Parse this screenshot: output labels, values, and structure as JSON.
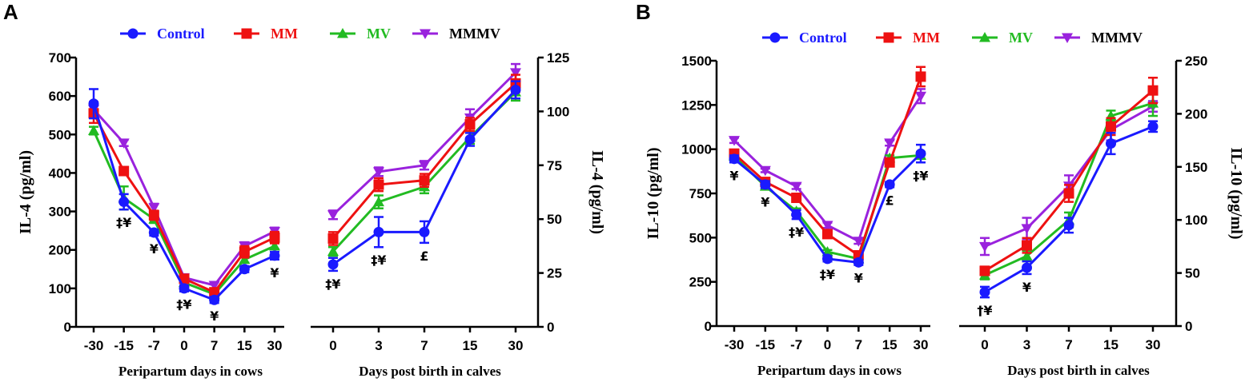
{
  "colors": {
    "Control": "#1a1aff",
    "MM": "#ee1111",
    "MV": "#22bb22",
    "MMMV": "#9922dd"
  },
  "legend": [
    "Control",
    "MM",
    "MV",
    "MMMV"
  ],
  "chart_data": [
    {
      "panel": "A",
      "type": "line",
      "title": "",
      "left": {
        "xlabel": "Peripartum days in cows",
        "ylabel": "IL-4 (pg/ml)",
        "categories": [
          "-30",
          "-15",
          "-7",
          "0",
          "7",
          "15",
          "30"
        ],
        "ylim": [
          0,
          700
        ],
        "yticks": [
          "0",
          "100",
          "200",
          "300",
          "400",
          "500",
          "600",
          "700"
        ],
        "series": [
          {
            "name": "Control",
            "values": [
              580,
              325,
              245,
              100,
              70,
              150,
              185
            ],
            "err": [
              38,
              20,
              8,
              8,
              8,
              8,
              10
            ]
          },
          {
            "name": "MM",
            "values": [
              555,
              405,
              290,
              125,
              90,
              195,
              232
            ],
            "err": [
              25,
              8,
              12,
              8,
              6,
              15,
              15
            ]
          },
          {
            "name": "MV",
            "values": [
              510,
              335,
              280,
              115,
              85,
              175,
              210
            ],
            "err": [
              10,
              30,
              10,
              8,
              6,
              8,
              8
            ]
          },
          {
            "name": "MMMV",
            "values": [
              565,
              478,
              310,
              128,
              108,
              210,
              248
            ],
            "err": [
              20,
              8,
              10,
              8,
              8,
              10,
              10
            ]
          }
        ],
        "annotations": [
          {
            "x": "-15",
            "text": "‡¥"
          },
          {
            "x": "-7",
            "text": "¥"
          },
          {
            "x": "0",
            "text": "‡¥"
          },
          {
            "x": "7",
            "text": "¥"
          },
          {
            "x": "30",
            "text": "¥"
          }
        ]
      },
      "right": {
        "xlabel": "Days post birth in calves",
        "ylabel": "IL-4 (pg/ml)",
        "categories": [
          "0",
          "3",
          "7",
          "15",
          "30"
        ],
        "ylim": [
          0,
          125
        ],
        "yticks": [
          "0",
          "25",
          "50",
          "75",
          "100",
          "125"
        ],
        "series": [
          {
            "name": "Control",
            "values": [
              29,
              44,
              44,
              87,
              110
            ],
            "err": [
              3,
              7,
              5,
              3,
              4
            ]
          },
          {
            "name": "MM",
            "values": [
              41,
              66,
              68,
              94,
              113
            ],
            "err": [
              3,
              3,
              3,
              3,
              4
            ]
          },
          {
            "name": "MV",
            "values": [
              35,
              58,
              65,
              88,
              109
            ],
            "err": [
              2,
              3,
              3,
              3,
              4
            ]
          },
          {
            "name": "MMMV",
            "values": [
              52,
              72,
              75,
              97,
              118
            ],
            "err": [
              2,
              2,
              2,
              4,
              4
            ]
          }
        ],
        "annotations": [
          {
            "x": "0",
            "text": "‡¥"
          },
          {
            "x": "3",
            "text": "‡¥"
          },
          {
            "x": "7",
            "text": "£"
          }
        ]
      }
    },
    {
      "panel": "B",
      "type": "line",
      "title": "",
      "left": {
        "xlabel": "Peripartum days in cows",
        "ylabel": "IL-10 (pg/ml)",
        "categories": [
          "-30",
          "-15",
          "-7",
          "0",
          "7",
          "15",
          "30"
        ],
        "ylim": [
          0,
          1500
        ],
        "yticks": [
          "0",
          "250",
          "500",
          "750",
          "1000",
          "1250",
          "1500"
        ],
        "series": [
          {
            "name": "Control",
            "values": [
              945,
              800,
              630,
              380,
              360,
              800,
              975
            ],
            "err": [
              20,
              20,
              25,
              15,
              15,
              15,
              50
            ]
          },
          {
            "name": "MM",
            "values": [
              975,
              815,
              725,
              520,
              400,
              925,
              1410
            ],
            "err": [
              20,
              15,
              15,
              20,
              15,
              20,
              55
            ]
          },
          {
            "name": "MV",
            "values": [
              960,
              790,
              650,
              420,
              380,
              950,
              965
            ],
            "err": [
              15,
              15,
              15,
              10,
              15,
              15,
              20
            ]
          },
          {
            "name": "MMMV",
            "values": [
              1050,
              880,
              790,
              570,
              480,
              1035,
              1300
            ],
            "err": [
              15,
              10,
              15,
              15,
              15,
              15,
              40
            ]
          }
        ],
        "annotations": [
          {
            "x": "-30",
            "text": "¥"
          },
          {
            "x": "-15",
            "text": "¥"
          },
          {
            "x": "-7",
            "text": "‡¥"
          },
          {
            "x": "0",
            "text": "‡¥"
          },
          {
            "x": "7",
            "text": "¥"
          },
          {
            "x": "15",
            "text": "£"
          },
          {
            "x": "30",
            "text": "‡¥"
          }
        ]
      },
      "right": {
        "xlabel": "Days post birth in calves",
        "ylabel": "IL-10 (pg/ml)",
        "categories": [
          "0",
          "3",
          "7",
          "15",
          "30"
        ],
        "ylim": [
          0,
          250
        ],
        "yticks": [
          "0",
          "50",
          "100",
          "150",
          "200",
          "250"
        ],
        "series": [
          {
            "name": "Control",
            "values": [
              32,
              55,
              95,
              172,
              188
            ],
            "err": [
              5,
              6,
              7,
              10,
              5
            ]
          },
          {
            "name": "MM",
            "values": [
              52,
              76,
              125,
              188,
              222
            ],
            "err": [
              4,
              7,
              8,
              8,
              12
            ]
          },
          {
            "name": "MV",
            "values": [
              48,
              66,
              100,
              198,
              210
            ],
            "err": [
              4,
              5,
              7,
              5,
              12
            ]
          },
          {
            "name": "MMMV",
            "values": [
              75,
              92,
              132,
              185,
              207
            ],
            "err": [
              8,
              10,
              10,
              10,
              5
            ]
          }
        ],
        "annotations": [
          {
            "x": "0",
            "text": "†¥"
          },
          {
            "x": "3",
            "text": "¥"
          }
        ]
      }
    }
  ]
}
